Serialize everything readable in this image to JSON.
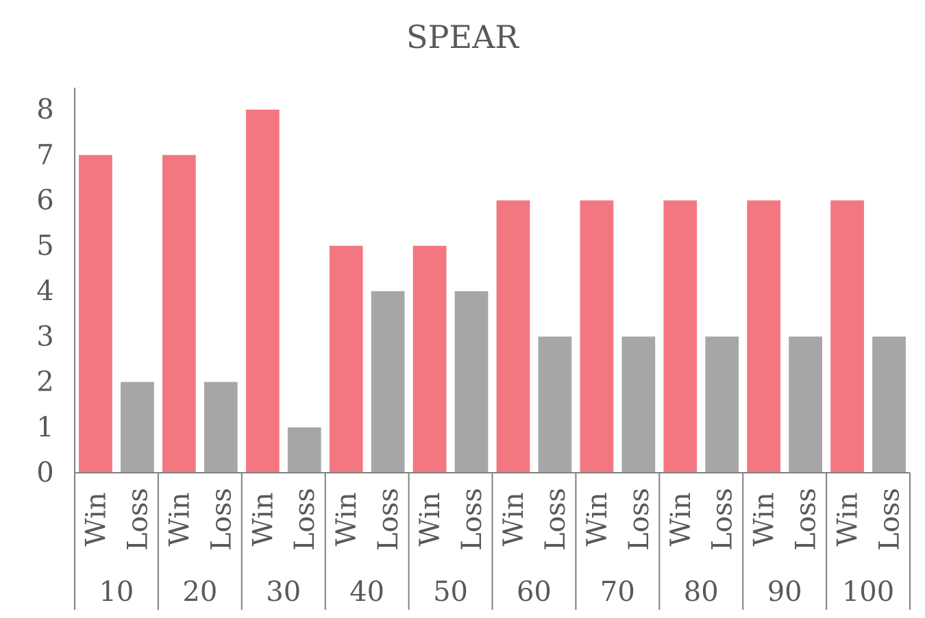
{
  "chart_data": {
    "type": "bar",
    "title": "SPEAR",
    "xlabel": "",
    "ylabel": "",
    "ylim": [
      0,
      8
    ],
    "yticks": [
      "0",
      "1",
      "2",
      "3",
      "4",
      "5",
      "6",
      "7",
      "8"
    ],
    "grid": false,
    "legend": "none",
    "groups": [
      "10",
      "20",
      "30",
      "40",
      "50",
      "60",
      "70",
      "80",
      "90",
      "100"
    ],
    "subcategories": [
      "Win",
      "Loss"
    ],
    "values": [
      [
        7,
        2
      ],
      [
        7,
        2
      ],
      [
        8,
        1
      ],
      [
        5,
        4
      ],
      [
        5,
        4
      ],
      [
        6,
        3
      ],
      [
        6,
        3
      ],
      [
        6,
        3
      ],
      [
        6,
        3
      ],
      [
        6,
        3
      ]
    ],
    "colors": [
      "#f37781",
      "#a6a6a6"
    ]
  }
}
